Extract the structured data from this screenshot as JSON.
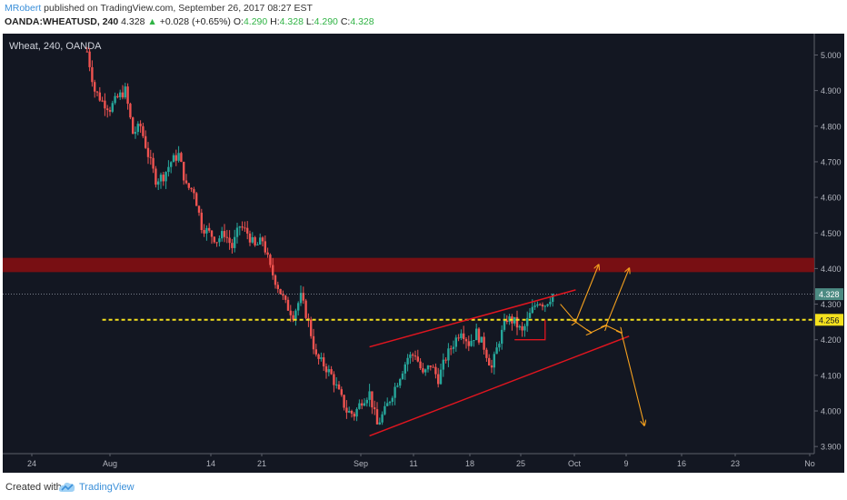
{
  "header": {
    "author": "MRobert",
    "published_text": " published on TradingView.com, September 26, 2017 08:27 EST",
    "symbol": "OANDA:WHEATUSD, 240",
    "last": "4.328",
    "arrow": "▲",
    "change": "+0.028 (+0.65%)",
    "o_label": "O:",
    "o_value": "4.290",
    "h_label": "H:",
    "h_value": "4.328",
    "l_label": "L:",
    "l_value": "4.290",
    "c_label": "C:",
    "c_value": "4.328"
  },
  "footer": {
    "created_with": "Created with",
    "brand": "TradingView"
  },
  "colors": {
    "background": "#131722",
    "up": "#26a69a",
    "down": "#ef5350",
    "channel": "#e0151f",
    "zone": "#8b0e10",
    "support": "#f5e11e",
    "projection": "#f5a11e",
    "price_label": "#4d8b83",
    "brand": "#3a8fd9"
  },
  "chart_data": {
    "type": "candlestick",
    "title": "Wheat, 240, OANDA",
    "ylim": [
      3.88,
      5.06
    ],
    "y_ticks": [
      "5.000",
      "4.900",
      "4.800",
      "4.700",
      "4.600",
      "4.500",
      "4.400",
      "4.300",
      "4.200",
      "4.100",
      "4.000",
      "3.900"
    ],
    "x_ticks": [
      "24",
      "Aug",
      "14",
      "21",
      "Sep",
      "11",
      "18",
      "25",
      "Oct",
      "9",
      "16",
      "23",
      "No"
    ],
    "price_path": [
      [
        -3,
        5.01
      ],
      [
        -2,
        4.9
      ],
      [
        -1,
        4.87
      ],
      [
        0,
        4.85
      ],
      [
        1,
        4.88
      ],
      [
        2,
        4.9
      ],
      [
        3,
        4.78
      ],
      [
        4,
        4.8
      ],
      [
        5,
        4.72
      ],
      [
        6,
        4.65
      ],
      [
        7,
        4.66
      ],
      [
        8,
        4.7
      ],
      [
        9,
        4.72
      ],
      [
        10,
        4.63
      ],
      [
        11,
        4.62
      ],
      [
        12,
        4.52
      ],
      [
        13,
        4.5
      ],
      [
        14,
        4.48
      ],
      [
        15,
        4.5
      ],
      [
        16,
        4.46
      ],
      [
        17,
        4.52
      ],
      [
        18,
        4.5
      ],
      [
        19,
        4.46
      ],
      [
        20,
        4.48
      ],
      [
        21,
        4.4
      ],
      [
        22,
        4.35
      ],
      [
        23,
        4.3
      ],
      [
        24,
        4.27
      ],
      [
        25,
        4.32
      ],
      [
        26,
        4.25
      ],
      [
        27,
        4.15
      ],
      [
        28,
        4.13
      ],
      [
        29,
        4.1
      ],
      [
        30,
        4.05
      ],
      [
        31,
        4.0
      ],
      [
        32,
        3.99
      ],
      [
        33,
        4.03
      ],
      [
        34,
        4.05
      ],
      [
        35,
        3.96
      ],
      [
        36,
        4.0
      ],
      [
        37,
        4.05
      ],
      [
        38,
        4.1
      ],
      [
        39,
        4.15
      ],
      [
        40,
        4.16
      ],
      [
        41,
        4.1
      ],
      [
        42,
        4.13
      ],
      [
        43,
        4.09
      ],
      [
        44,
        4.15
      ],
      [
        45,
        4.19
      ],
      [
        46,
        4.23
      ],
      [
        47,
        4.19
      ],
      [
        48,
        4.22
      ],
      [
        49,
        4.18
      ],
      [
        50,
        4.12
      ],
      [
        51,
        4.2
      ],
      [
        52,
        4.26
      ],
      [
        53,
        4.25
      ],
      [
        54,
        4.22
      ],
      [
        55,
        4.27
      ],
      [
        56,
        4.31
      ],
      [
        57,
        4.3
      ],
      [
        58,
        4.328
      ]
    ],
    "last_price": "4.328",
    "support_price": "4.256",
    "support_level": 4.256,
    "resistance_zone": [
      4.39,
      4.43
    ],
    "channel_upper": [
      [
        34,
        4.18
      ],
      [
        61,
        4.34
      ]
    ],
    "channel_lower": [
      [
        34,
        3.93
      ],
      [
        68,
        4.21
      ]
    ],
    "pattern_box": [
      [
        53,
        4.2
      ],
      [
        57,
        4.2
      ],
      [
        57,
        4.256
      ]
    ],
    "projections": [
      [
        [
          59,
          4.3
        ],
        [
          61,
          4.25
        ],
        [
          64,
          4.41
        ]
      ],
      [
        [
          61,
          4.25
        ],
        [
          63,
          4.22
        ],
        [
          65,
          4.24
        ],
        [
          68,
          4.4
        ]
      ],
      [
        [
          65,
          4.24
        ],
        [
          67,
          4.22
        ],
        [
          70,
          3.96
        ]
      ]
    ]
  }
}
